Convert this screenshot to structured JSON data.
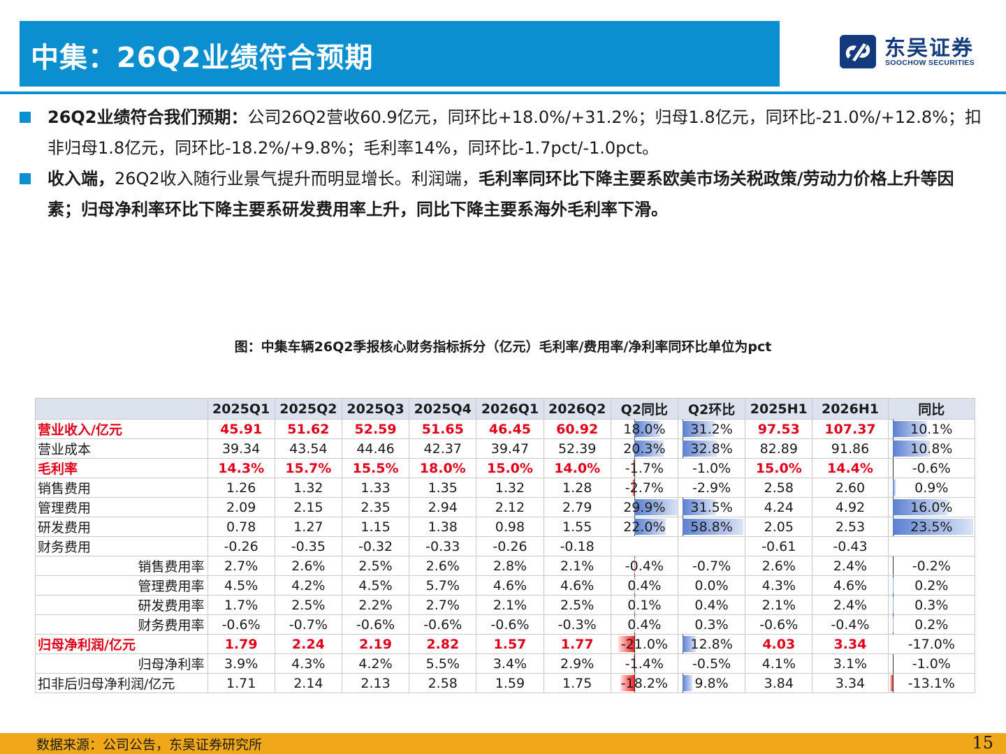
{
  "header": {
    "title": "中集：26Q2业绩符合预期",
    "logo_cn": "东吴证券",
    "logo_en": "SOOCHOW SECURITIES",
    "brand_color": "#0b8fd0"
  },
  "bullets": [
    {
      "bold": "26Q2业绩符合我们预期：",
      "text": "公司26Q2营收60.9亿元，同环比+18.0%/+31.2%；归母1.8亿元，同环比-21.0%/+12.8%；扣非归母1.8亿元，同环比-18.2%/+9.8%；毛利率14%，同环比-1.7pct/-1.0pct。"
    },
    {
      "bold": "收入端，",
      "text": "26Q2收入随行业景气提升而明显增长。利润端，",
      "bold2": "毛利率同环比下降主要系欧美市场关税政策/劳动力价格上升等因素；归母净利率环比下降主要系研发费用率上升，同比下降主要系海外毛利率下滑。"
    }
  ],
  "chart_title": "图：中集车辆26Q2季报核心财务指标拆分（亿元）毛利率/费用率/净利率同环比单位为pct",
  "table": {
    "headers": [
      "",
      "2025Q1",
      "2025Q2",
      "2025Q3",
      "2025Q4",
      "2026Q1",
      "2026Q2",
      "Q2同比",
      "Q2环比",
      "2025H1",
      "2026H1",
      "同比"
    ],
    "rows": [
      {
        "label": "营业收入/亿元",
        "hl": true,
        "sub": false,
        "cells": [
          "45.91",
          "51.62",
          "52.59",
          "51.65",
          "46.45",
          "60.92"
        ],
        "yoy": "18.0%",
        "yoy_n": 18.0,
        "qoq": "31.2%",
        "qoq_n": 31.2,
        "h1": [
          "97.53",
          "107.37"
        ],
        "h1yoy": "10.1%",
        "h1yoy_n": 10.1
      },
      {
        "label": "营业成本",
        "hl": false,
        "sub": false,
        "cells": [
          "39.34",
          "43.54",
          "44.46",
          "42.37",
          "39.47",
          "52.39"
        ],
        "yoy": "20.3%",
        "yoy_n": 20.3,
        "qoq": "32.8%",
        "qoq_n": 32.8,
        "h1": [
          "82.89",
          "91.86"
        ],
        "h1yoy": "10.8%",
        "h1yoy_n": 10.8
      },
      {
        "label": "毛利率",
        "hl": true,
        "sub": false,
        "cells": [
          "14.3%",
          "15.7%",
          "15.5%",
          "18.0%",
          "15.0%",
          "14.0%"
        ],
        "yoy": "-1.7%",
        "yoy_n": -1.7,
        "qoq": "-1.0%",
        "qoq_n": null,
        "h1": [
          "15.0%",
          "14.4%"
        ],
        "h1yoy": "-0.6%",
        "h1yoy_n": -0.6
      },
      {
        "label": "销售费用",
        "hl": false,
        "sub": false,
        "cells": [
          "1.26",
          "1.32",
          "1.33",
          "1.35",
          "1.32",
          "1.28"
        ],
        "yoy": "-2.7%",
        "yoy_n": -2.7,
        "qoq": "-2.9%",
        "qoq_n": null,
        "h1": [
          "2.58",
          "2.60"
        ],
        "h1yoy": "0.9%",
        "h1yoy_n": 0.9
      },
      {
        "label": "管理费用",
        "hl": false,
        "sub": false,
        "cells": [
          "2.09",
          "2.15",
          "2.35",
          "2.94",
          "2.12",
          "2.79"
        ],
        "yoy": "29.9%",
        "yoy_n": 29.9,
        "qoq": "31.5%",
        "qoq_n": 31.5,
        "h1": [
          "4.24",
          "4.92"
        ],
        "h1yoy": "16.0%",
        "h1yoy_n": 16.0
      },
      {
        "label": "研发费用",
        "hl": false,
        "sub": false,
        "cells": [
          "0.78",
          "1.27",
          "1.15",
          "1.38",
          "0.98",
          "1.55"
        ],
        "yoy": "22.0%",
        "yoy_n": 22.0,
        "qoq": "58.8%",
        "qoq_n": 58.8,
        "h1": [
          "2.05",
          "2.53"
        ],
        "h1yoy": "23.5%",
        "h1yoy_n": 23.5
      },
      {
        "label": "财务费用",
        "hl": false,
        "sub": false,
        "cells": [
          "-0.26",
          "-0.35",
          "-0.32",
          "-0.33",
          "-0.26",
          "-0.18"
        ],
        "yoy": "",
        "yoy_n": null,
        "qoq": "",
        "qoq_n": null,
        "h1": [
          "-0.61",
          "-0.43"
        ],
        "h1yoy": "",
        "h1yoy_n": null
      },
      {
        "label": "销售费用率",
        "hl": false,
        "sub": true,
        "cells": [
          "2.7%",
          "2.6%",
          "2.5%",
          "2.6%",
          "2.8%",
          "2.1%"
        ],
        "yoy": "-0.4%",
        "yoy_n": -0.4,
        "qoq": "-0.7%",
        "qoq_n": null,
        "h1": [
          "2.6%",
          "2.4%"
        ],
        "h1yoy": "-0.2%",
        "h1yoy_n": -0.2
      },
      {
        "label": "管理费用率",
        "hl": false,
        "sub": true,
        "cells": [
          "4.5%",
          "4.2%",
          "4.5%",
          "5.7%",
          "4.6%",
          "4.6%"
        ],
        "yoy": "0.4%",
        "yoy_n": 0.4,
        "qoq": "0.0%",
        "qoq_n": null,
        "h1": [
          "4.3%",
          "4.6%"
        ],
        "h1yoy": "0.2%",
        "h1yoy_n": 0.2
      },
      {
        "label": "研发费用率",
        "hl": false,
        "sub": true,
        "cells": [
          "1.7%",
          "2.5%",
          "2.2%",
          "2.7%",
          "2.1%",
          "2.5%"
        ],
        "yoy": "0.1%",
        "yoy_n": 0.1,
        "qoq": "0.4%",
        "qoq_n": null,
        "h1": [
          "2.1%",
          "2.4%"
        ],
        "h1yoy": "0.3%",
        "h1yoy_n": 0.3
      },
      {
        "label": "财务费用率",
        "hl": false,
        "sub": true,
        "cells": [
          "-0.6%",
          "-0.7%",
          "-0.6%",
          "-0.6%",
          "-0.6%",
          "-0.3%"
        ],
        "yoy": "0.4%",
        "yoy_n": 0.4,
        "qoq": "0.3%",
        "qoq_n": null,
        "h1": [
          "-0.6%",
          "-0.4%"
        ],
        "h1yoy": "0.2%",
        "h1yoy_n": 0.2
      },
      {
        "label": "归母净利润/亿元",
        "hl": true,
        "sub": false,
        "cells": [
          "1.79",
          "2.24",
          "2.19",
          "2.82",
          "1.57",
          "1.77"
        ],
        "yoy": "-21.0%",
        "yoy_n": -21.0,
        "qoq": "12.8%",
        "qoq_n": 12.8,
        "h1": [
          "4.03",
          "3.34"
        ],
        "h1yoy": "-17.0%",
        "h1yoy_n": null
      },
      {
        "label": "归母净利率",
        "hl": false,
        "sub": true,
        "cells": [
          "3.9%",
          "4.3%",
          "4.2%",
          "5.5%",
          "3.4%",
          "2.9%"
        ],
        "yoy": "-1.4%",
        "yoy_n": -1.4,
        "qoq": "-0.5%",
        "qoq_n": null,
        "h1": [
          "4.1%",
          "3.1%"
        ],
        "h1yoy": "-1.0%",
        "h1yoy_n": -1.0
      },
      {
        "label": "扣非后归母净利润/亿元",
        "hl": false,
        "sub": false,
        "cells": [
          "1.71",
          "2.14",
          "2.13",
          "2.58",
          "1.59",
          "1.75"
        ],
        "yoy": "-18.2%",
        "yoy_n": -18.2,
        "qoq": "9.8%",
        "qoq_n": 9.8,
        "h1": [
          "3.84",
          "3.34"
        ],
        "h1yoy": "-13.1%",
        "h1yoy_n": -13.1
      }
    ]
  },
  "footer": {
    "source": "数据来源：公司公告，东吴证券研究所",
    "page": "15",
    "color": "#f0a81a"
  }
}
